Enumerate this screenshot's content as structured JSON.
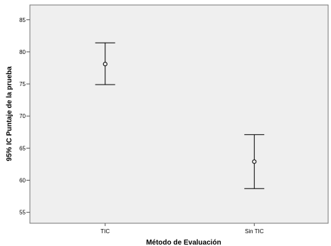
{
  "chart_data": {
    "type": "errorbar",
    "xlabel": "Método de Evaluación",
    "ylabel": "95% IC Puntaje de la prueba",
    "categories": [
      "TIC",
      "Sin TIC"
    ],
    "means": [
      78.1,
      62.9
    ],
    "ci_lower": [
      74.9,
      58.7
    ],
    "ci_upper": [
      81.4,
      67.1
    ],
    "yticks": [
      55,
      60,
      65,
      70,
      75,
      80,
      85
    ],
    "ylim": [
      53.3,
      87.3
    ],
    "grid": false,
    "plot_background": "#efefef",
    "series_color": "#000000"
  }
}
